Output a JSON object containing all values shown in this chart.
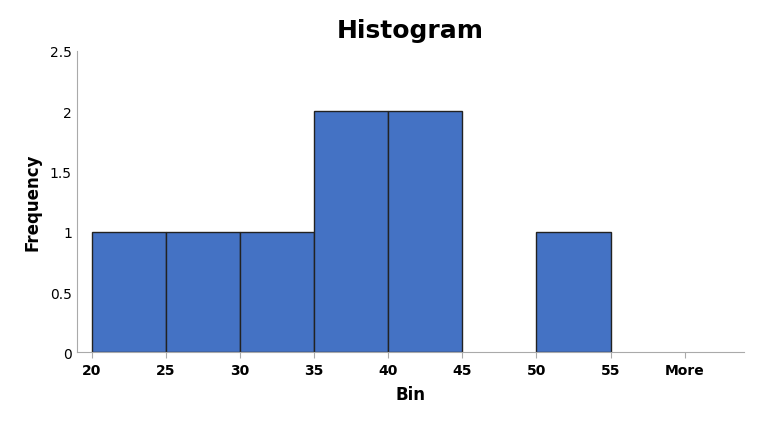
{
  "title": "Histogram",
  "xlabel": "Bin",
  "ylabel": "Frequency",
  "bar_color": "#4472C4",
  "bar_edgecolor": "#222222",
  "bar_linewidth": 1.0,
  "xtick_labels": [
    "20",
    "25",
    "30",
    "35",
    "40",
    "45",
    "50",
    "55",
    "More"
  ],
  "xtick_positions": [
    0,
    1,
    2,
    3,
    4,
    5,
    6,
    7,
    8
  ],
  "ylim": [
    0,
    2.5
  ],
  "yticks": [
    0,
    0.5,
    1.0,
    1.5,
    2.0,
    2.5
  ],
  "ytick_labels": [
    "0",
    "0.5",
    "1",
    "1.5",
    "2",
    "2.5"
  ],
  "bar_positions": [
    0.5,
    1.5,
    2.5,
    3.5,
    4.5,
    6.5
  ],
  "bar_heights": [
    1,
    1,
    1,
    2,
    2,
    1
  ],
  "bar_width": 1.0,
  "title_fontsize": 18,
  "axis_label_fontsize": 12,
  "tick_fontsize": 10,
  "background_color": "#ffffff",
  "spine_color": "#aaaaaa",
  "xlim": [
    -0.2,
    8.8
  ]
}
